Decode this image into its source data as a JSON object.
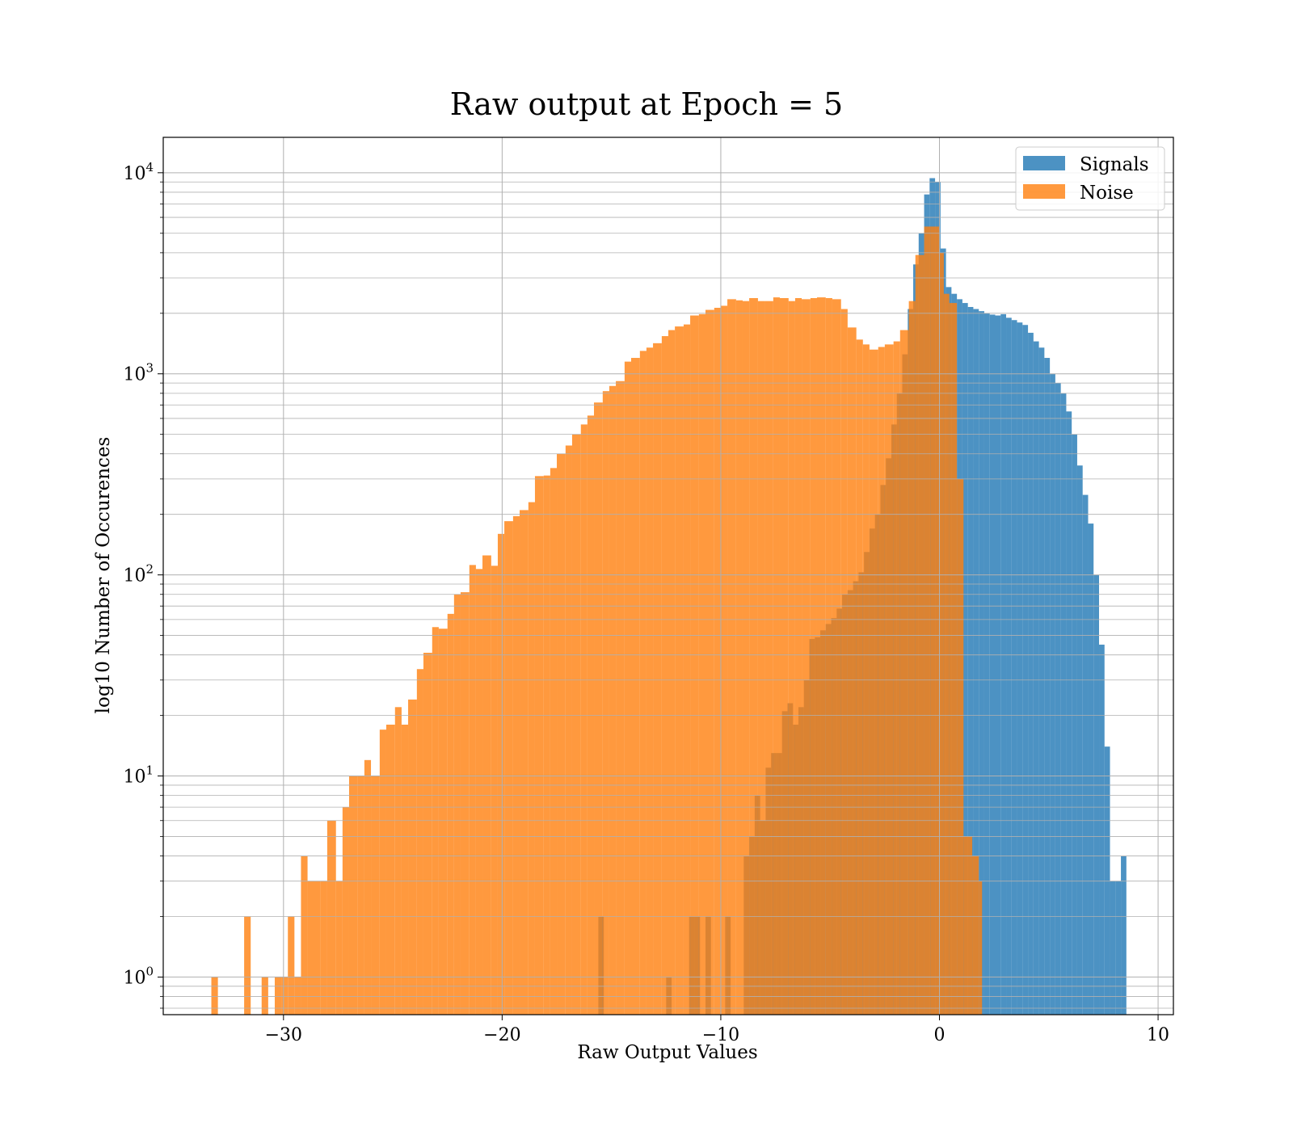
{
  "chart_data": {
    "type": "bar",
    "title": "Raw output at Epoch = 5",
    "xlabel": "Raw Output Values",
    "ylabel": "log10 Number of Occurences",
    "xlim": [
      -35.5,
      10.7
    ],
    "ylim": [
      0.65,
      15000
    ],
    "yscale": "log",
    "grid": "on (major and minor)",
    "legend_position": "top-right",
    "colors": {
      "signals": "#1f77b4",
      "noise": "#ff7f0e"
    },
    "x_ticks": [
      -30,
      -20,
      -10,
      0,
      10
    ],
    "x_tick_labels": [
      "−30",
      "−20",
      "−10",
      "0",
      "10"
    ],
    "y_ticks": [
      1,
      10,
      100,
      1000,
      10000
    ],
    "y_tick_labels": [
      {
        "base": "10",
        "exp": "0"
      },
      {
        "base": "10",
        "exp": "1"
      },
      {
        "base": "10",
        "exp": "2"
      },
      {
        "base": "10",
        "exp": "3"
      },
      {
        "base": "10",
        "exp": "4"
      }
    ],
    "series": [
      {
        "name": "Signals",
        "bins": [
          [
            -15.6,
            -15.35,
            2
          ],
          [
            -12.5,
            -12.25,
            1
          ],
          [
            -11.45,
            -11.2,
            2
          ],
          [
            -11.2,
            -10.95,
            2
          ],
          [
            -10.7,
            -10.45,
            2
          ],
          [
            -9.8,
            -9.55,
            2
          ],
          [
            -8.95,
            -8.7,
            4
          ],
          [
            -8.7,
            -8.45,
            5
          ],
          [
            -8.45,
            -8.2,
            8
          ],
          [
            -8.2,
            -7.95,
            6
          ],
          [
            -7.95,
            -7.7,
            11
          ],
          [
            -7.7,
            -7.45,
            13
          ],
          [
            -7.45,
            -7.2,
            13
          ],
          [
            -7.2,
            -6.95,
            21
          ],
          [
            -6.95,
            -6.7,
            23
          ],
          [
            -6.7,
            -6.45,
            18
          ],
          [
            -6.45,
            -6.2,
            22
          ],
          [
            -6.2,
            -5.95,
            30
          ],
          [
            -5.95,
            -5.7,
            48
          ],
          [
            -5.7,
            -5.45,
            49
          ],
          [
            -5.45,
            -5.2,
            53
          ],
          [
            -5.2,
            -4.95,
            57
          ],
          [
            -4.95,
            -4.7,
            61
          ],
          [
            -4.7,
            -4.45,
            68
          ],
          [
            -4.45,
            -4.2,
            80
          ],
          [
            -4.2,
            -3.95,
            84
          ],
          [
            -3.95,
            -3.7,
            93
          ],
          [
            -3.7,
            -3.45,
            103
          ],
          [
            -3.45,
            -3.2,
            130
          ],
          [
            -3.2,
            -2.95,
            170
          ],
          [
            -2.95,
            -2.7,
            200
          ],
          [
            -2.7,
            -2.45,
            280
          ],
          [
            -2.45,
            -2.2,
            380
          ],
          [
            -2.2,
            -1.95,
            560
          ],
          [
            -1.95,
            -1.7,
            800
          ],
          [
            -1.7,
            -1.45,
            1250
          ],
          [
            -1.45,
            -1.2,
            2100
          ],
          [
            -1.2,
            -0.95,
            3500
          ],
          [
            -0.95,
            -0.7,
            5000
          ],
          [
            -0.7,
            -0.45,
            7800
          ],
          [
            -0.45,
            -0.2,
            9400
          ],
          [
            -0.2,
            0.05,
            9000
          ],
          [
            0.05,
            0.3,
            4200
          ],
          [
            0.3,
            0.55,
            2700
          ],
          [
            0.55,
            0.8,
            2500
          ],
          [
            0.8,
            1.05,
            2350
          ],
          [
            1.05,
            1.3,
            2250
          ],
          [
            1.3,
            1.55,
            2150
          ],
          [
            1.55,
            1.8,
            2100
          ],
          [
            1.8,
            2.05,
            2050
          ],
          [
            2.05,
            2.3,
            2000
          ],
          [
            2.3,
            2.55,
            1970
          ],
          [
            2.55,
            2.8,
            1950
          ],
          [
            2.8,
            3.05,
            1980
          ],
          [
            3.05,
            3.3,
            1900
          ],
          [
            3.3,
            3.55,
            1850
          ],
          [
            3.55,
            3.8,
            1800
          ],
          [
            3.8,
            4.05,
            1750
          ],
          [
            4.05,
            4.3,
            1600
          ],
          [
            4.3,
            4.55,
            1450
          ],
          [
            4.55,
            4.8,
            1350
          ],
          [
            4.8,
            5.05,
            1200
          ],
          [
            5.05,
            5.3,
            1000
          ],
          [
            5.3,
            5.55,
            900
          ],
          [
            5.55,
            5.8,
            800
          ],
          [
            5.8,
            6.05,
            650
          ],
          [
            6.05,
            6.3,
            500
          ],
          [
            6.3,
            6.55,
            350
          ],
          [
            6.55,
            6.8,
            250
          ],
          [
            6.8,
            7.05,
            180
          ],
          [
            7.05,
            7.3,
            100
          ],
          [
            7.3,
            7.55,
            45
          ],
          [
            7.55,
            7.8,
            14
          ],
          [
            7.8,
            8.05,
            3
          ],
          [
            8.05,
            8.3,
            3
          ],
          [
            8.3,
            8.55,
            4
          ]
        ]
      },
      {
        "name": "Noise",
        "bins": [
          [
            -33.3,
            -33.0,
            1
          ],
          [
            -31.8,
            -31.5,
            2
          ],
          [
            -31.0,
            -30.7,
            1
          ],
          [
            -30.4,
            -30.1,
            1
          ],
          [
            -30.1,
            -29.8,
            1
          ],
          [
            -29.8,
            -29.5,
            2
          ],
          [
            -29.5,
            -29.2,
            1
          ],
          [
            -29.2,
            -28.9,
            4
          ],
          [
            -28.9,
            -28.3,
            3
          ],
          [
            -28.3,
            -28.0,
            3
          ],
          [
            -28.0,
            -27.6,
            6
          ],
          [
            -27.6,
            -27.3,
            3
          ],
          [
            -27.3,
            -27.0,
            7
          ],
          [
            -27.0,
            -26.6,
            10
          ],
          [
            -26.6,
            -26.3,
            10
          ],
          [
            -26.3,
            -26.0,
            12
          ],
          [
            -26.0,
            -25.6,
            10
          ],
          [
            -25.6,
            -25.3,
            17
          ],
          [
            -25.3,
            -24.9,
            18
          ],
          [
            -24.9,
            -24.6,
            22
          ],
          [
            -24.6,
            -24.3,
            18
          ],
          [
            -24.3,
            -23.9,
            24
          ],
          [
            -23.9,
            -23.6,
            34
          ],
          [
            -23.6,
            -23.2,
            41
          ],
          [
            -23.2,
            -22.9,
            55
          ],
          [
            -22.9,
            -22.5,
            54
          ],
          [
            -22.5,
            -22.2,
            64
          ],
          [
            -22.2,
            -21.9,
            80
          ],
          [
            -21.9,
            -21.5,
            82
          ],
          [
            -21.5,
            -21.2,
            112
          ],
          [
            -21.2,
            -20.9,
            107
          ],
          [
            -20.9,
            -20.5,
            125
          ],
          [
            -20.5,
            -20.2,
            111
          ],
          [
            -20.2,
            -19.9,
            160
          ],
          [
            -19.9,
            -19.5,
            185
          ],
          [
            -19.5,
            -19.2,
            196
          ],
          [
            -19.2,
            -18.8,
            210
          ],
          [
            -18.8,
            -18.5,
            230
          ],
          [
            -18.5,
            -18.1,
            310
          ],
          [
            -18.1,
            -17.8,
            312
          ],
          [
            -17.8,
            -17.5,
            340
          ],
          [
            -17.5,
            -17.1,
            400
          ],
          [
            -17.1,
            -16.8,
            440
          ],
          [
            -16.8,
            -16.4,
            500
          ],
          [
            -16.4,
            -16.1,
            560
          ],
          [
            -16.1,
            -15.8,
            620
          ],
          [
            -15.8,
            -15.4,
            720
          ],
          [
            -15.4,
            -15.1,
            820
          ],
          [
            -15.1,
            -14.8,
            870
          ],
          [
            -14.8,
            -14.4,
            920
          ],
          [
            -14.4,
            -14.1,
            1150
          ],
          [
            -14.1,
            -13.7,
            1200
          ],
          [
            -13.7,
            -13.4,
            1300
          ],
          [
            -13.4,
            -13.1,
            1350
          ],
          [
            -13.1,
            -12.7,
            1420
          ],
          [
            -12.7,
            -12.4,
            1540
          ],
          [
            -12.4,
            -12.1,
            1650
          ],
          [
            -12.1,
            -11.7,
            1720
          ],
          [
            -11.7,
            -11.4,
            1760
          ],
          [
            -11.4,
            -11.0,
            1950
          ],
          [
            -11.0,
            -10.7,
            1980
          ],
          [
            -10.7,
            -10.3,
            2080
          ],
          [
            -10.3,
            -10.0,
            2130
          ],
          [
            -10.0,
            -9.7,
            2180
          ],
          [
            -9.7,
            -9.3,
            2350
          ],
          [
            -9.3,
            -9.0,
            2320
          ],
          [
            -9.0,
            -8.7,
            2300
          ],
          [
            -8.7,
            -8.3,
            2380
          ],
          [
            -8.3,
            -8.0,
            2300
          ],
          [
            -8.0,
            -7.6,
            2300
          ],
          [
            -7.6,
            -7.3,
            2400
          ],
          [
            -7.3,
            -6.9,
            2380
          ],
          [
            -6.9,
            -6.6,
            2300
          ],
          [
            -6.6,
            -6.3,
            2380
          ],
          [
            -6.3,
            -5.9,
            2350
          ],
          [
            -5.9,
            -5.6,
            2380
          ],
          [
            -5.6,
            -5.2,
            2400
          ],
          [
            -5.2,
            -4.9,
            2380
          ],
          [
            -4.9,
            -4.5,
            2350
          ],
          [
            -4.5,
            -4.2,
            2100
          ],
          [
            -4.2,
            -3.8,
            1700
          ],
          [
            -3.8,
            -3.5,
            1480
          ],
          [
            -3.5,
            -3.2,
            1400
          ],
          [
            -3.2,
            -2.8,
            1320
          ],
          [
            -2.8,
            -2.5,
            1360
          ],
          [
            -2.5,
            -2.1,
            1400
          ],
          [
            -2.1,
            -1.8,
            1450
          ],
          [
            -1.8,
            -1.4,
            1650
          ],
          [
            -1.4,
            -1.1,
            2300
          ],
          [
            -1.1,
            -0.7,
            3900
          ],
          [
            -0.7,
            -0.4,
            5400
          ],
          [
            -0.4,
            0.0,
            5400
          ],
          [
            0.0,
            0.2,
            4000
          ],
          [
            0.2,
            0.45,
            2500
          ],
          [
            0.45,
            0.8,
            2250
          ],
          [
            0.8,
            1.1,
            300
          ],
          [
            1.1,
            1.5,
            5
          ],
          [
            1.5,
            1.8,
            4
          ],
          [
            1.8,
            1.95,
            3
          ]
        ]
      }
    ]
  }
}
